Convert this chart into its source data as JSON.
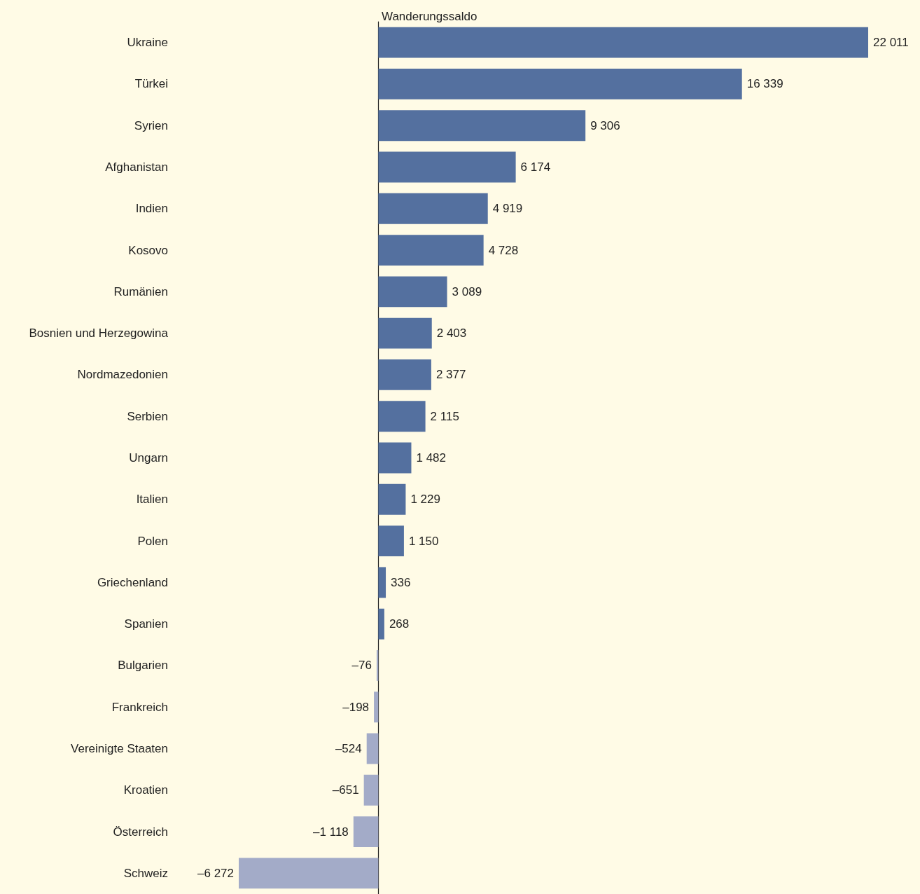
{
  "chart_data": {
    "type": "bar",
    "orientation": "horizontal",
    "title": "Wanderungssaldo",
    "categories": [
      "Ukraine",
      "Türkei",
      "Syrien",
      "Afghanistan",
      "Indien",
      "Kosovo",
      "Rumänien",
      "Bosnien und Herzegowina",
      "Nordmazedonien",
      "Serbien",
      "Ungarn",
      "Italien",
      "Polen",
      "Griechenland",
      "Spanien",
      "Bulgarien",
      "Frankreich",
      "Vereinigte Staaten",
      "Kroatien",
      "Österreich",
      "Schweiz"
    ],
    "values": [
      22011,
      16339,
      9306,
      6174,
      4919,
      4728,
      3089,
      2403,
      2377,
      2115,
      1482,
      1229,
      1150,
      336,
      268,
      -76,
      -198,
      -524,
      -651,
      -1118,
      -6272
    ],
    "value_labels": [
      "22 011",
      "16 339",
      "9 306",
      "6 174",
      "4 919",
      "4 728",
      "3 089",
      "2 403",
      "2 377",
      "2 115",
      "1 482",
      "1 229",
      "1 150",
      "336",
      "268",
      "–76",
      "–198",
      "–524",
      "–651",
      "–1 118",
      "–6 272"
    ],
    "colors": [
      "#54709f",
      "#54709f",
      "#54709f",
      "#54709f",
      "#54709f",
      "#54709f",
      "#54709f",
      "#54709f",
      "#54709f",
      "#54709f",
      "#54709f",
      "#54709f",
      "#54709f",
      "#54709f",
      "#54709f",
      "#a3abc8",
      "#a3abc8",
      "#a3abc8",
      "#a3abc8",
      "#a3abc8",
      "#a3abc8"
    ],
    "grid": false
  }
}
